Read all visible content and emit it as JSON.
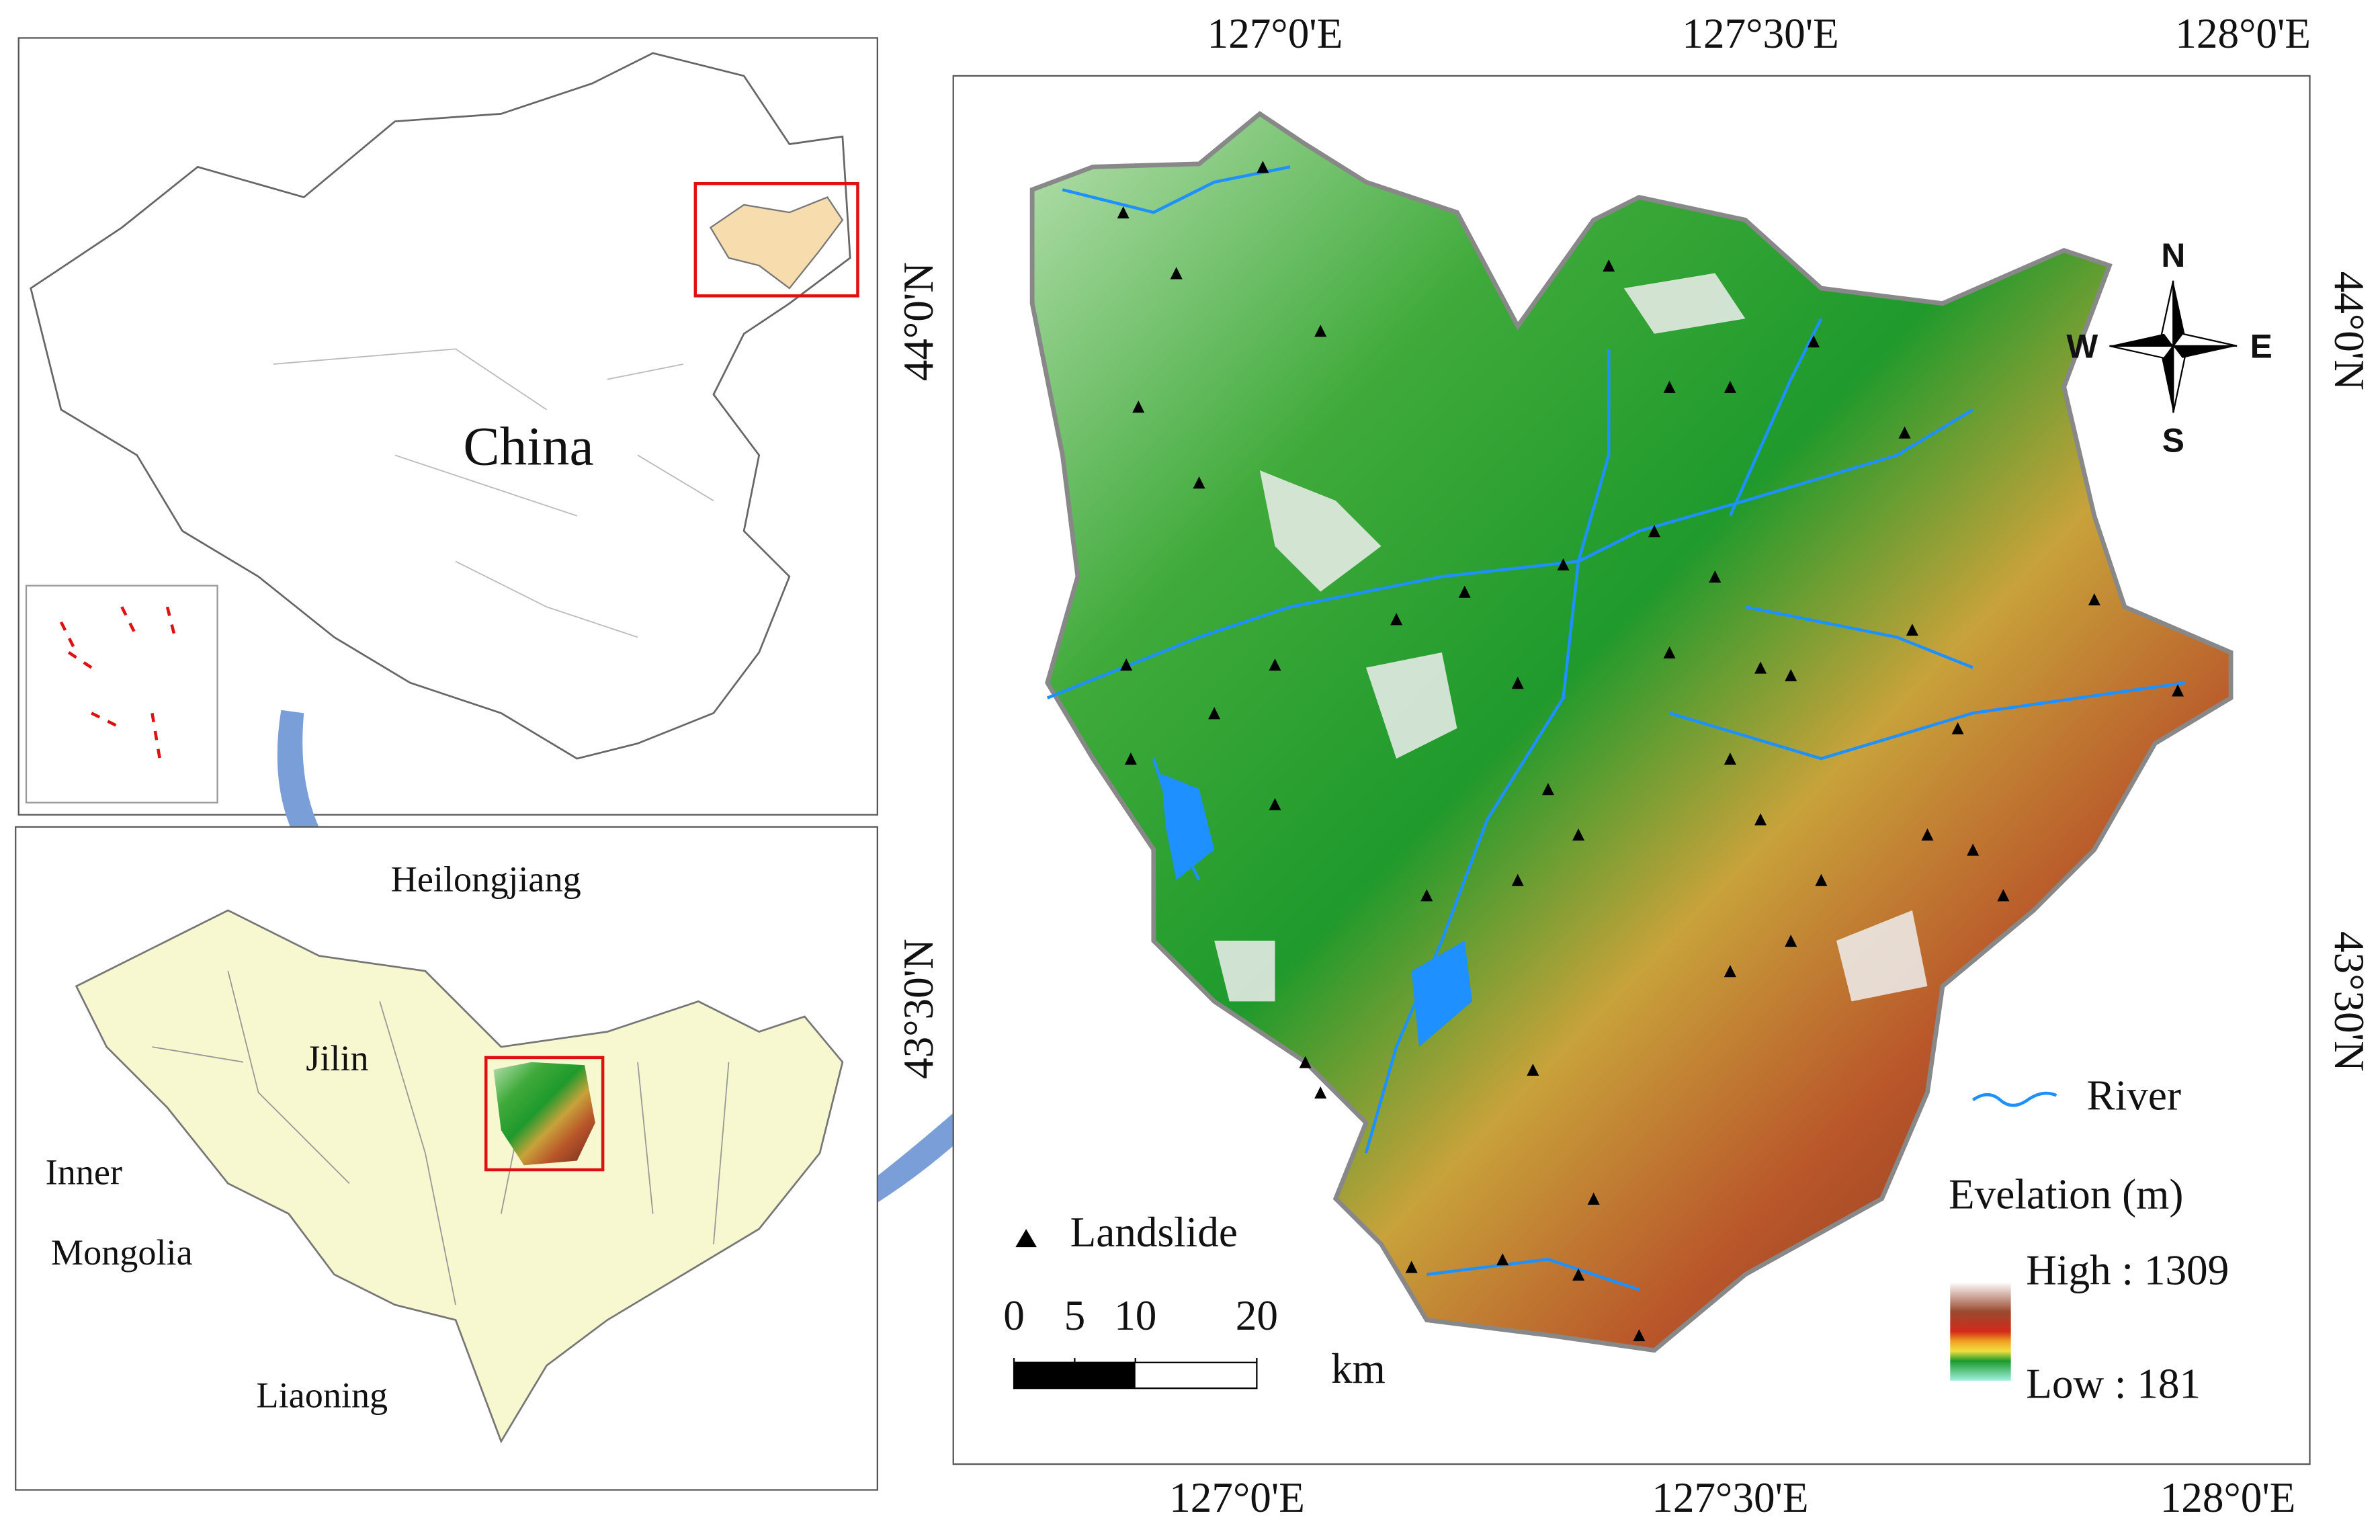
{
  "inset_map": {
    "label": "China"
  },
  "locator_map": {
    "labels": [
      "Heilongjiang",
      "Jilin",
      "Inner",
      "Mongolia",
      "Liaoning"
    ]
  },
  "main_map": {
    "top_labels": [
      "127°0'E",
      "127°30'E",
      "128°0'E"
    ],
    "bottom_labels": [
      "127°0'E",
      "127°30'E",
      "128°0'E"
    ],
    "left_labels": [
      "44°0'N",
      "43°30'N"
    ],
    "right_labels": [
      "44°0'N",
      "43°30'N"
    ],
    "compass": {
      "n": "N",
      "s": "S",
      "w": "W",
      "e": "E"
    },
    "legend": {
      "landslide": "Landslide",
      "river": "River",
      "elevation_title": "Evelation (m)",
      "high": "High : 1309",
      "low": "Low : 181"
    },
    "scale_bar": {
      "ticks": [
        0,
        5,
        10,
        20
      ],
      "unit": "km"
    }
  }
}
